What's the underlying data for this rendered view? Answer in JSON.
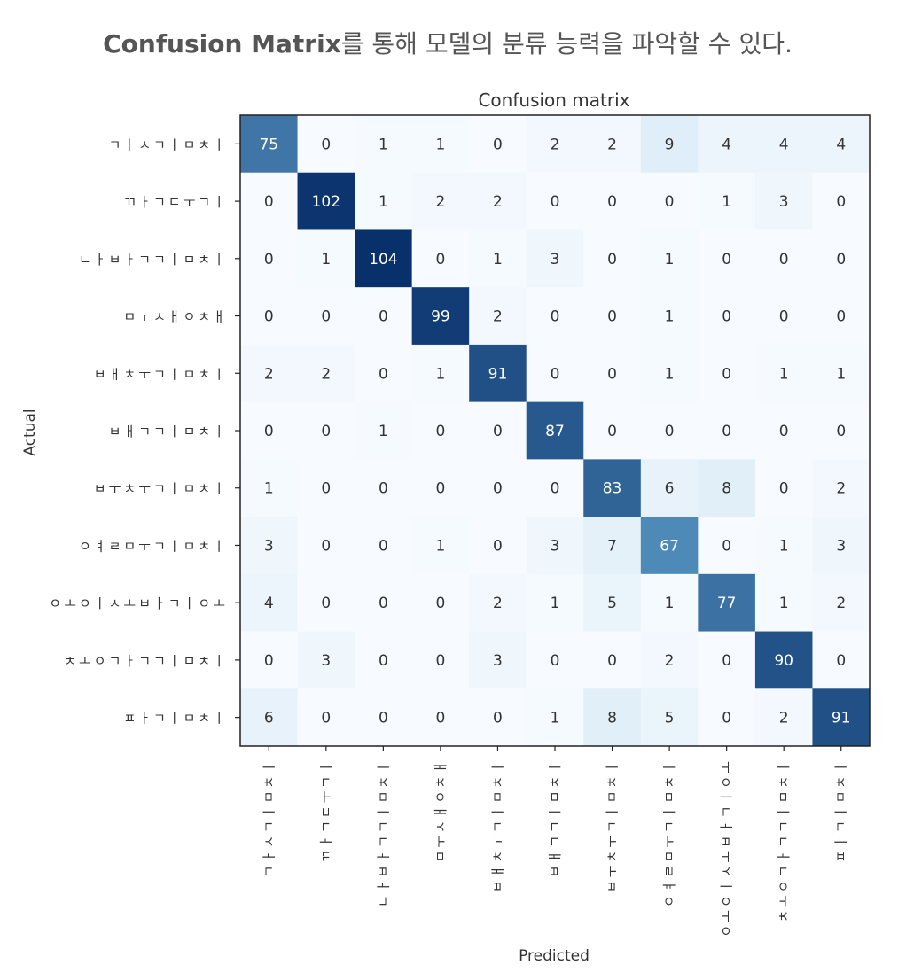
{
  "heading": {
    "bold_part": "Confusion Matrix",
    "rest": "를 통해 모델의 분류 능력을 파악할 수 있다."
  },
  "chart_data": {
    "type": "heatmap",
    "title": "Confusion matrix",
    "xlabel": "Predicted",
    "ylabel": "Actual",
    "colormap": "Blues",
    "color_low": "#f7fbff",
    "color_high": "#08306b",
    "vmax": 104,
    "labels": [
      "ㄱㅏㅅㄱㅣㅁㅊㅣ",
      "ㄲㅏㄱㄷㅜㄱㅣ",
      "ㄴㅏㅂㅏㄱㄱㅣㅁㅊㅣ",
      "ㅁㅜㅅㅐㅇㅊㅐ",
      "ㅂㅐㅊㅜㄱㅣㅁㅊㅣ",
      "ㅂㅐㄱㄱㅣㅁㅊㅣ",
      "ㅂㅜㅊㅜㄱㅣㅁㅊㅣ",
      "ㅇㅕㄹㅁㅜㄱㅣㅁㅊㅣ",
      "ㅇㅗㅇㅣㅅㅗㅂㅏㄱㅣㅇㅗ",
      "ㅊㅗㅇㄱㅏㄱㄱㅣㅁㅊㅣ",
      "ㅍㅏㄱㅣㅁㅊㅣ"
    ],
    "matrix": [
      [
        75,
        0,
        1,
        1,
        0,
        2,
        2,
        9,
        4,
        4,
        4
      ],
      [
        0,
        102,
        1,
        2,
        2,
        0,
        0,
        0,
        1,
        3,
        0
      ],
      [
        0,
        1,
        104,
        0,
        1,
        3,
        0,
        1,
        0,
        0,
        0
      ],
      [
        0,
        0,
        0,
        99,
        2,
        0,
        0,
        1,
        0,
        0,
        0
      ],
      [
        2,
        2,
        0,
        1,
        91,
        0,
        0,
        1,
        0,
        1,
        1
      ],
      [
        0,
        0,
        1,
        0,
        0,
        87,
        0,
        0,
        0,
        0,
        0
      ],
      [
        1,
        0,
        0,
        0,
        0,
        0,
        83,
        6,
        8,
        0,
        2
      ],
      [
        3,
        0,
        0,
        1,
        0,
        3,
        7,
        67,
        0,
        1,
        3
      ],
      [
        4,
        0,
        0,
        0,
        2,
        1,
        5,
        1,
        77,
        1,
        2
      ],
      [
        0,
        3,
        0,
        0,
        3,
        0,
        0,
        2,
        0,
        90,
        0
      ],
      [
        6,
        0,
        0,
        0,
        0,
        1,
        8,
        5,
        0,
        2,
        91
      ]
    ]
  }
}
